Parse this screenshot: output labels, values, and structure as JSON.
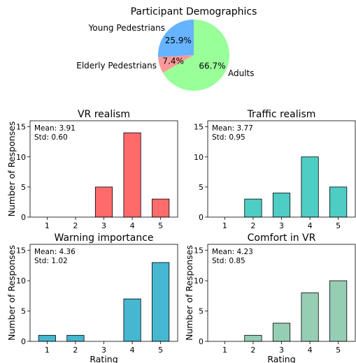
{
  "pie": {
    "title": "Participant Demographics",
    "type": "pie",
    "slices": [
      {
        "label": "Young Pedestrians",
        "value": 25.9,
        "pct_label": "25.9%",
        "color": "#66b3ff"
      },
      {
        "label": "Elderly Pedestrians",
        "value": 7.4,
        "pct_label": "7.4%",
        "color": "#ff9999"
      },
      {
        "label": "Adults",
        "value": 66.7,
        "pct_label": "66.7%",
        "color": "#99ff99"
      }
    ]
  },
  "chart_data": [
    {
      "type": "bar",
      "title": "VR realism",
      "ylabel": "Number of Responses",
      "xlabel": "",
      "categories": [
        "1",
        "2",
        "3",
        "4",
        "5"
      ],
      "values": [
        0,
        0,
        5,
        14,
        3
      ],
      "ylim": [
        0,
        16
      ],
      "yticks": [
        0,
        5,
        10,
        15
      ],
      "color": "#ff6b6b",
      "mean_text": "Mean: 3.91",
      "std_text": "Std: 0.60"
    },
    {
      "type": "bar",
      "title": "Traffic realism",
      "ylabel": "",
      "xlabel": "",
      "categories": [
        "1",
        "2",
        "3",
        "4",
        "5"
      ],
      "values": [
        0,
        3,
        4,
        10,
        5
      ],
      "ylim": [
        0,
        16
      ],
      "yticks": [
        0,
        5,
        10,
        15
      ],
      "color": "#4ecdc4",
      "mean_text": "Mean: 3.77",
      "std_text": "Std: 0.95"
    },
    {
      "type": "bar",
      "title": "Warning importance",
      "ylabel": "Number of Responses",
      "xlabel": "Rating",
      "categories": [
        "1",
        "2",
        "3",
        "4",
        "5"
      ],
      "values": [
        1,
        1,
        0,
        7,
        13
      ],
      "ylim": [
        0,
        16
      ],
      "yticks": [
        0,
        5,
        10,
        15
      ],
      "color": "#45b7d1",
      "mean_text": "Mean: 4.36",
      "std_text": "Std: 1.02"
    },
    {
      "type": "bar",
      "title": "Comfort in VR",
      "ylabel": "Number of Responses",
      "xlabel": "Rating",
      "categories": [
        "1",
        "2",
        "3",
        "4",
        "5"
      ],
      "values": [
        0,
        1,
        3,
        8,
        10
      ],
      "ylim": [
        0,
        16
      ],
      "yticks": [
        0,
        5,
        10,
        15
      ],
      "color": "#96ceb4",
      "mean_text": "Mean: 4.23",
      "std_text": "Std: 0.85"
    }
  ]
}
